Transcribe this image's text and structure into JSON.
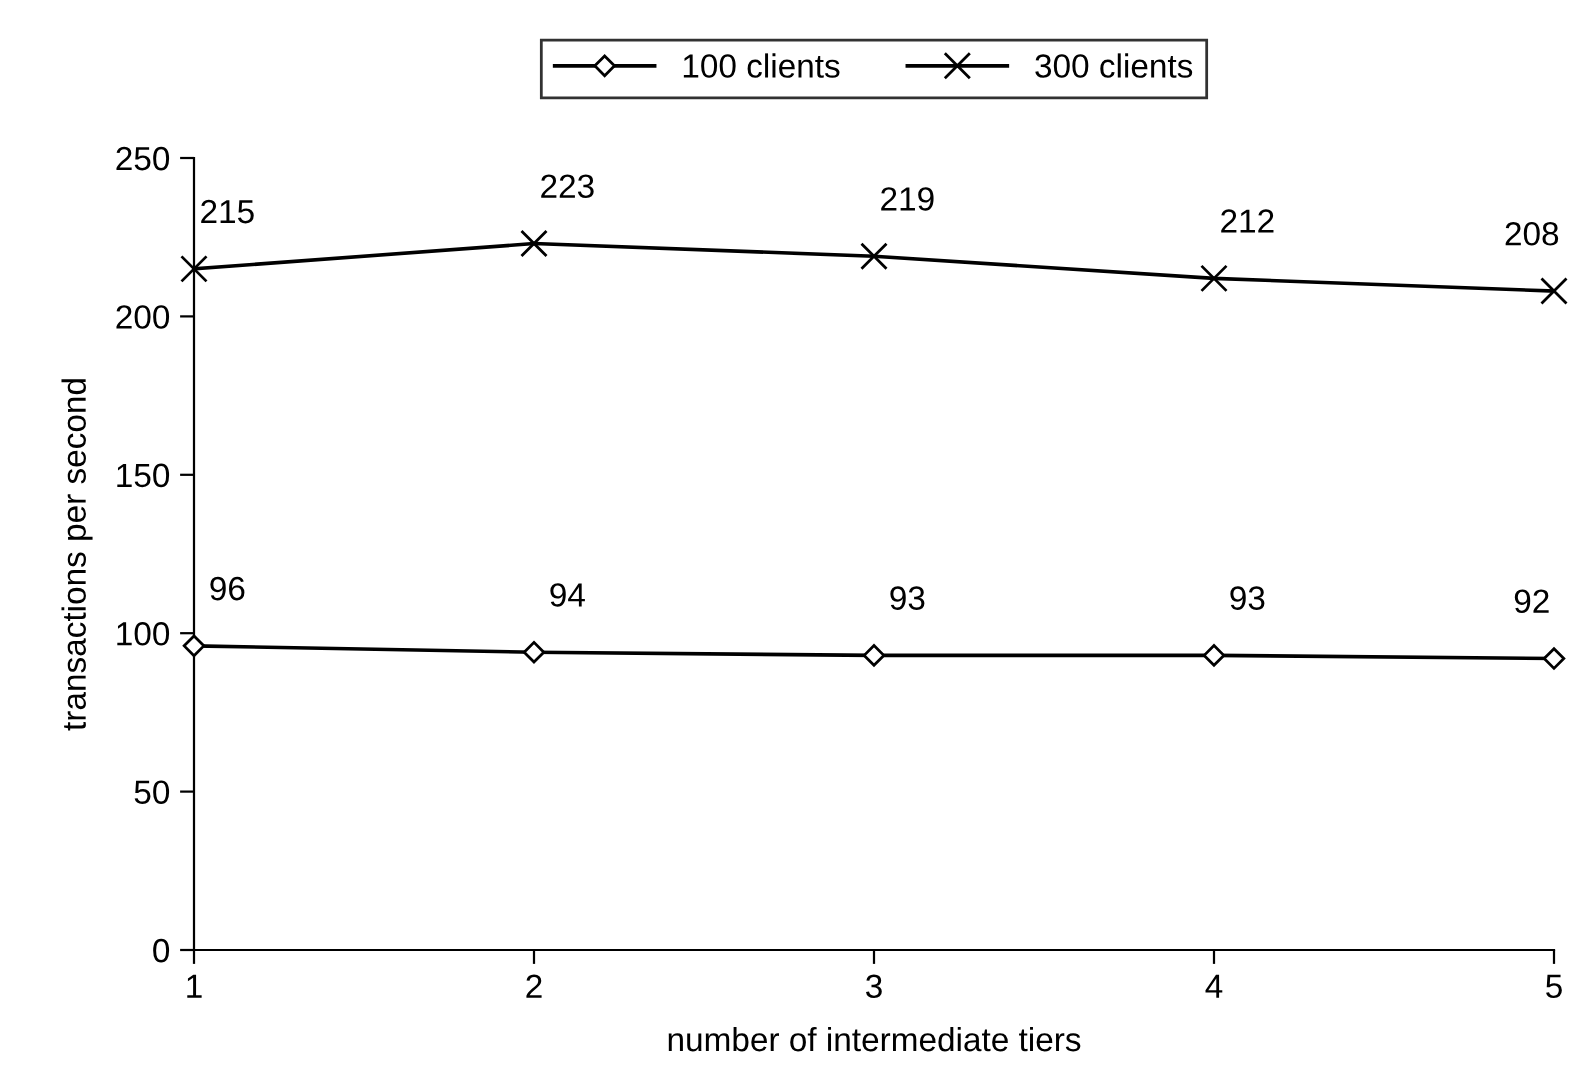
{
  "chart_data": {
    "type": "line",
    "xlabel": "number of intermediate tiers",
    "ylabel": "transactions per second",
    "x": [
      1,
      2,
      3,
      4,
      5
    ],
    "series": [
      {
        "name": "100 clients",
        "color": "#000000",
        "marker": "diamond",
        "values": [
          96,
          94,
          93,
          93,
          92
        ]
      },
      {
        "name": "300 clients",
        "color": "#000000",
        "marker": "cross",
        "values": [
          215,
          223,
          219,
          212,
          208
        ]
      }
    ],
    "xlim": [
      1,
      5
    ],
    "xticks": [
      1,
      2,
      3,
      4,
      5
    ],
    "ylim": [
      0,
      250
    ],
    "yticks": [
      0,
      50,
      100,
      150,
      200,
      250
    ],
    "data_labels": true,
    "legend": "top",
    "grid": false,
    "line_style": "solid"
  }
}
